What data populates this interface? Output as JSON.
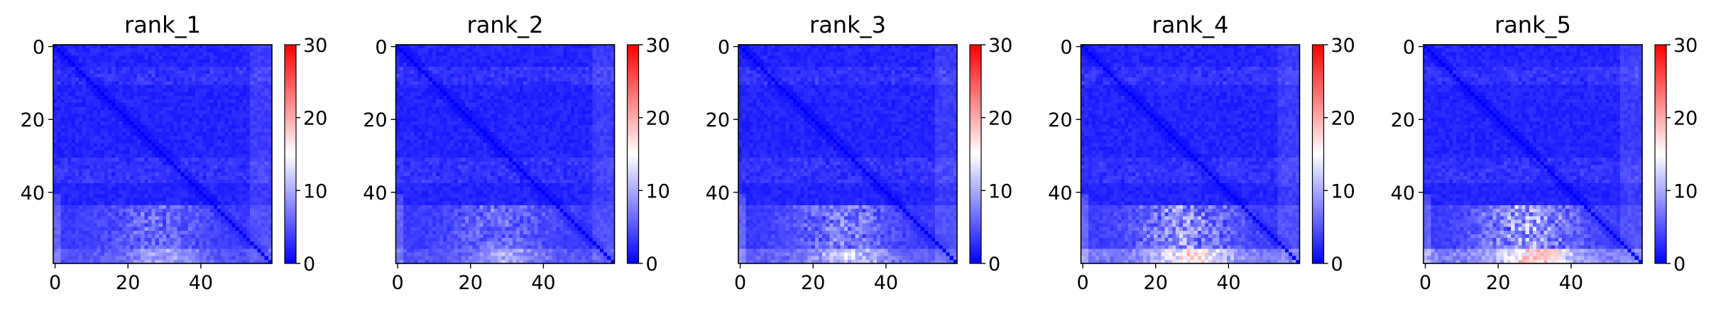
{
  "chart_data": [
    {
      "type": "heatmap",
      "title": "rank_1",
      "matrix_size": 60,
      "xticks": [
        0,
        20,
        40
      ],
      "yticks": [
        0,
        20,
        40
      ],
      "xlim": [
        0,
        59
      ],
      "ylim": [
        59,
        0
      ],
      "colormap": "bwr",
      "colorbar": {
        "range": [
          0,
          30
        ],
        "ticks": [
          0,
          10,
          20,
          30
        ]
      },
      "colors": {
        "low": "#0000ff",
        "mid": "#ffffff",
        "high": "#ff0000"
      },
      "lower_region_max_value": 10
    },
    {
      "type": "heatmap",
      "title": "rank_2",
      "matrix_size": 60,
      "xticks": [
        0,
        20,
        40
      ],
      "yticks": [
        0,
        20,
        40
      ],
      "xlim": [
        0,
        59
      ],
      "ylim": [
        59,
        0
      ],
      "colormap": "bwr",
      "colorbar": {
        "range": [
          0,
          30
        ],
        "ticks": [
          0,
          10,
          20,
          30
        ]
      },
      "colors": {
        "low": "#0000ff",
        "mid": "#ffffff",
        "high": "#ff0000"
      },
      "lower_region_max_value": 10
    },
    {
      "type": "heatmap",
      "title": "rank_3",
      "matrix_size": 60,
      "xticks": [
        0,
        20,
        40
      ],
      "yticks": [
        0,
        20,
        40
      ],
      "xlim": [
        0,
        59
      ],
      "ylim": [
        59,
        0
      ],
      "colormap": "bwr",
      "colorbar": {
        "range": [
          0,
          30
        ],
        "ticks": [
          0,
          10,
          20,
          30
        ]
      },
      "colors": {
        "low": "#0000ff",
        "mid": "#ffffff",
        "high": "#ff0000"
      },
      "lower_region_max_value": 13
    },
    {
      "type": "heatmap",
      "title": "rank_4",
      "matrix_size": 60,
      "xticks": [
        0,
        20,
        40
      ],
      "yticks": [
        0,
        20,
        40
      ],
      "xlim": [
        0,
        59
      ],
      "ylim": [
        59,
        0
      ],
      "colormap": "bwr",
      "colorbar": {
        "range": [
          0,
          30
        ],
        "ticks": [
          0,
          10,
          20,
          30
        ]
      },
      "colors": {
        "low": "#0000ff",
        "mid": "#ffffff",
        "high": "#ff0000"
      },
      "lower_region_max_value": 18
    },
    {
      "type": "heatmap",
      "title": "rank_5",
      "matrix_size": 60,
      "xticks": [
        0,
        20,
        40
      ],
      "yticks": [
        0,
        20,
        40
      ],
      "xlim": [
        0,
        59
      ],
      "ylim": [
        59,
        0
      ],
      "colormap": "bwr",
      "colorbar": {
        "range": [
          0,
          30
        ],
        "ticks": [
          0,
          10,
          20,
          30
        ]
      },
      "colors": {
        "low": "#0000ff",
        "mid": "#ffffff",
        "high": "#ff0000"
      },
      "lower_region_max_value": 20
    }
  ]
}
